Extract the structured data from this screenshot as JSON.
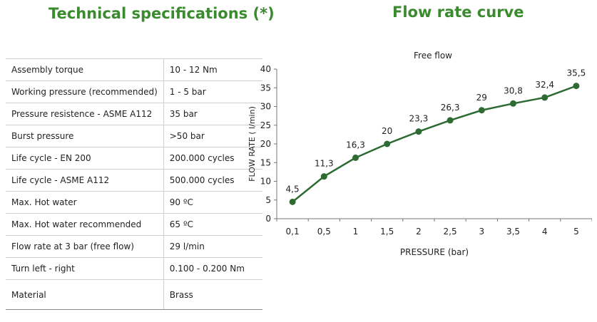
{
  "headings": {
    "specifications": "Technical specifications (*)",
    "curve": "Flow rate curve"
  },
  "specs": [
    {
      "label": "Assembly torque",
      "value": "10 - 12 Nm"
    },
    {
      "label": "Working pressure (recommended)",
      "value": "1 - 5 bar"
    },
    {
      "label": "Pressure resistence - ASME A112",
      "value": "35 bar"
    },
    {
      "label": "Burst pressure",
      "value": ">50 bar"
    },
    {
      "label": "Life cycle - EN 200",
      "value": "200.000 cycles"
    },
    {
      "label": "Life cycle - ASME A112",
      "value": "500.000 cycles"
    },
    {
      "label": "Max. Hot water",
      "value": "90 ºC"
    },
    {
      "label": "Max. Hot water recommended",
      "value": "65 ºC"
    },
    {
      "label": "Flow rate at 3 bar (free flow)",
      "value": "29 l/min"
    },
    {
      "label": "Turn left - right",
      "value": "0.100 - 0.200 Nm"
    },
    {
      "label": "Material",
      "value": "Brass"
    }
  ],
  "chart_data": {
    "type": "line",
    "title": "Free flow",
    "xlabel": "PRESSURE (bar)",
    "ylabel": "FLOW RATE ( l/min)",
    "categories": [
      "0,1",
      "0,5",
      "1",
      "1,5",
      "2",
      "2,5",
      "3",
      "3,5",
      "4",
      "5"
    ],
    "values": [
      4.5,
      11.3,
      16.3,
      20,
      23.3,
      26.3,
      29,
      30.8,
      32.4,
      35.5
    ],
    "data_labels": [
      "4,5",
      "11,3",
      "16,3",
      "20",
      "23,3",
      "26,3",
      "29",
      "30,8",
      "32,4",
      "35,5"
    ],
    "yticks": [
      "0",
      "5",
      "10",
      "15",
      "20",
      "25",
      "30",
      "35",
      "40"
    ],
    "ylim": [
      0,
      40
    ],
    "grid": false,
    "line_color": "#2e6b32"
  }
}
